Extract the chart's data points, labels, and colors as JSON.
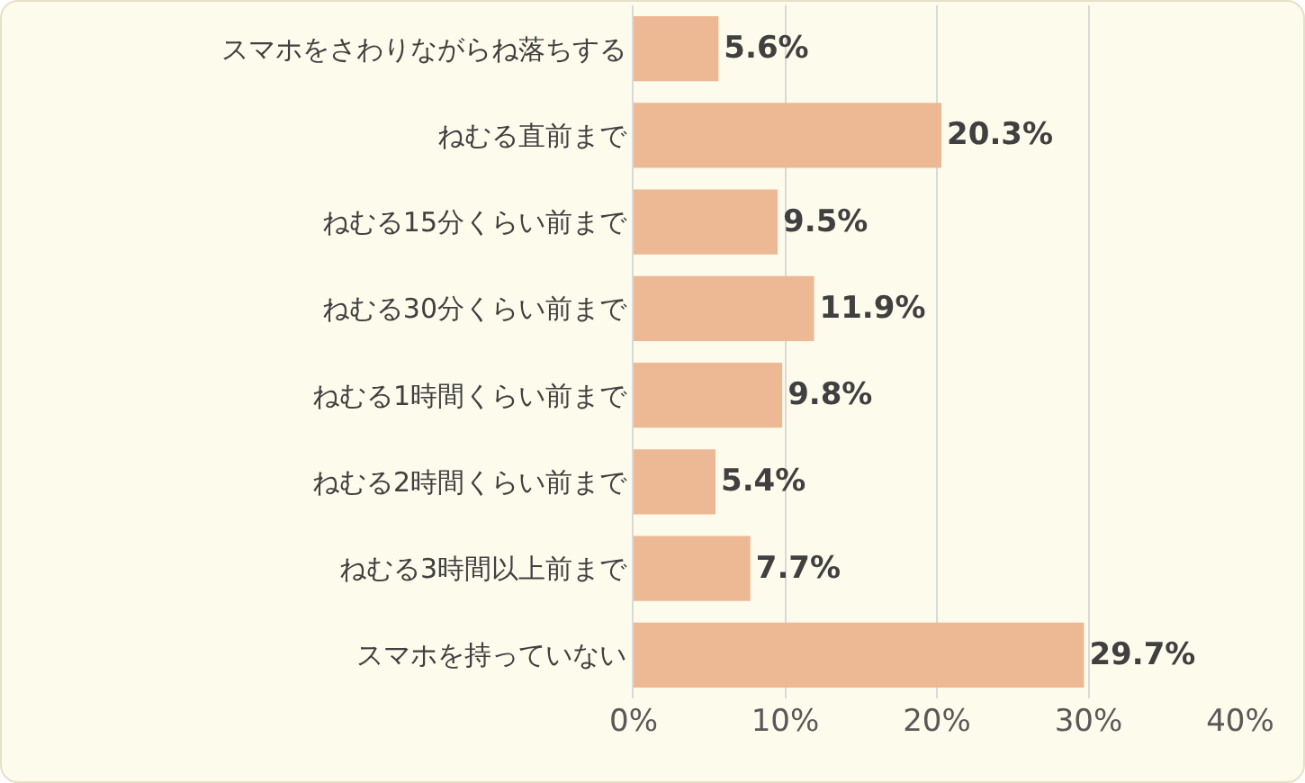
{
  "chart_data": {
    "type": "bar",
    "orientation": "horizontal",
    "categories": [
      "スマホをさわりながらね落ちする",
      "ねむる直前まで",
      "ねむる15分くらい前まで",
      "ねむる30分くらい前まで",
      "ねむる1時間くらい前まで",
      "ねむる2時間くらい前まで",
      "ねむる3時間以上前まで",
      "スマホを持っていない"
    ],
    "values": [
      5.6,
      20.3,
      9.5,
      11.9,
      9.8,
      5.4,
      7.7,
      29.7
    ],
    "value_labels": [
      "5.6%",
      "20.3%",
      "9.5%",
      "11.9%",
      "9.8%",
      "5.4%",
      "7.7%",
      "29.7%"
    ],
    "color": "#edb994",
    "xlim": [
      0,
      40
    ],
    "xticks": [
      {
        "value": 0,
        "label": "0%"
      },
      {
        "value": 10,
        "label": "10%"
      },
      {
        "value": 20,
        "label": "20%"
      },
      {
        "value": 30,
        "label": "30%"
      },
      {
        "value": 40,
        "label": "40%"
      }
    ],
    "grid": "x",
    "legend": false
  }
}
